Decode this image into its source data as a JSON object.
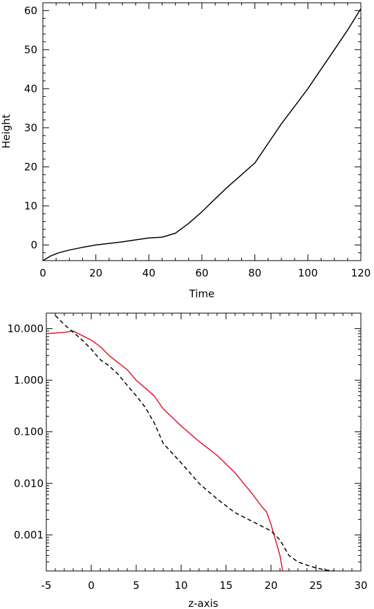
{
  "chart_data": [
    {
      "type": "line",
      "title": "",
      "xlabel": "Time",
      "ylabel": "Height",
      "xlim": [
        0,
        120
      ],
      "ylim": [
        -4,
        62
      ],
      "xticks": [
        0,
        20,
        40,
        60,
        80,
        100,
        120
      ],
      "xtick_labels": [
        "0",
        "20",
        "40",
        "60",
        "80",
        "100",
        "120"
      ],
      "yticks": [
        0,
        10,
        20,
        30,
        40,
        50,
        60
      ],
      "ytick_labels": [
        "0",
        "10",
        "20",
        "30",
        "40",
        "50",
        "60"
      ],
      "grid": false,
      "series": [
        {
          "color": "#000000",
          "dash": "solid",
          "x": [
            0,
            3,
            6,
            10,
            15,
            20,
            25,
            30,
            35,
            40,
            45,
            50,
            55,
            60,
            65,
            70,
            75,
            80,
            85,
            90,
            95,
            100,
            105,
            110,
            115,
            120
          ],
          "y": [
            -4,
            -2.8,
            -2.0,
            -1.3,
            -0.6,
            0,
            0.4,
            0.8,
            1.3,
            1.8,
            2.0,
            3.0,
            5.5,
            8.5,
            11.8,
            15.0,
            18.0,
            21.0,
            26.0,
            31.0,
            35.5,
            40.0,
            45.0,
            50.0,
            55.0,
            60.5
          ]
        }
      ]
    },
    {
      "type": "line",
      "title": "",
      "xlabel": "z-axis",
      "ylabel": "",
      "xlim": [
        -5,
        30
      ],
      "ylim": [
        0.0002,
        20
      ],
      "yscale": "log",
      "xticks": [
        -5,
        0,
        5,
        10,
        15,
        20,
        25,
        30
      ],
      "xtick_labels": [
        "-5",
        "0",
        "5",
        "10",
        "15",
        "20",
        "25",
        "30"
      ],
      "yticks": [
        0.001,
        0.01,
        0.1,
        1,
        10
      ],
      "ytick_labels": [
        "0.001",
        "0.010",
        "0.100",
        "1.000",
        "10.000"
      ],
      "grid": false,
      "series": [
        {
          "color": "#e0182d",
          "dash": "solid",
          "x": [
            -5,
            -3,
            -2,
            0,
            1,
            2,
            4,
            5,
            7,
            8,
            10,
            12,
            14,
            16,
            18,
            19,
            19.5,
            20,
            20.5,
            21,
            21.3
          ],
          "y": [
            8,
            8.5,
            9,
            6,
            4.5,
            3,
            1.6,
            1.0,
            0.5,
            0.28,
            0.13,
            0.065,
            0.035,
            0.016,
            0.006,
            0.0035,
            0.0028,
            0.0016,
            0.0008,
            0.0004,
            0.0002
          ]
        },
        {
          "color": "#000000",
          "dash": "dashed",
          "x": [
            -4,
            -3,
            -2,
            -1,
            0,
            1,
            2,
            3,
            4,
            5,
            6,
            7,
            8,
            10,
            12,
            14,
            16,
            18,
            20,
            21,
            22,
            23,
            24,
            25,
            26,
            27
          ],
          "y": [
            18,
            12,
            8.5,
            6,
            4,
            2.5,
            1.9,
            1.3,
            0.8,
            0.5,
            0.3,
            0.15,
            0.06,
            0.025,
            0.01,
            0.005,
            0.0027,
            0.0018,
            0.0012,
            0.0008,
            0.0004,
            0.0003,
            0.00026,
            0.00023,
            0.00021,
            0.0002
          ]
        }
      ]
    }
  ]
}
